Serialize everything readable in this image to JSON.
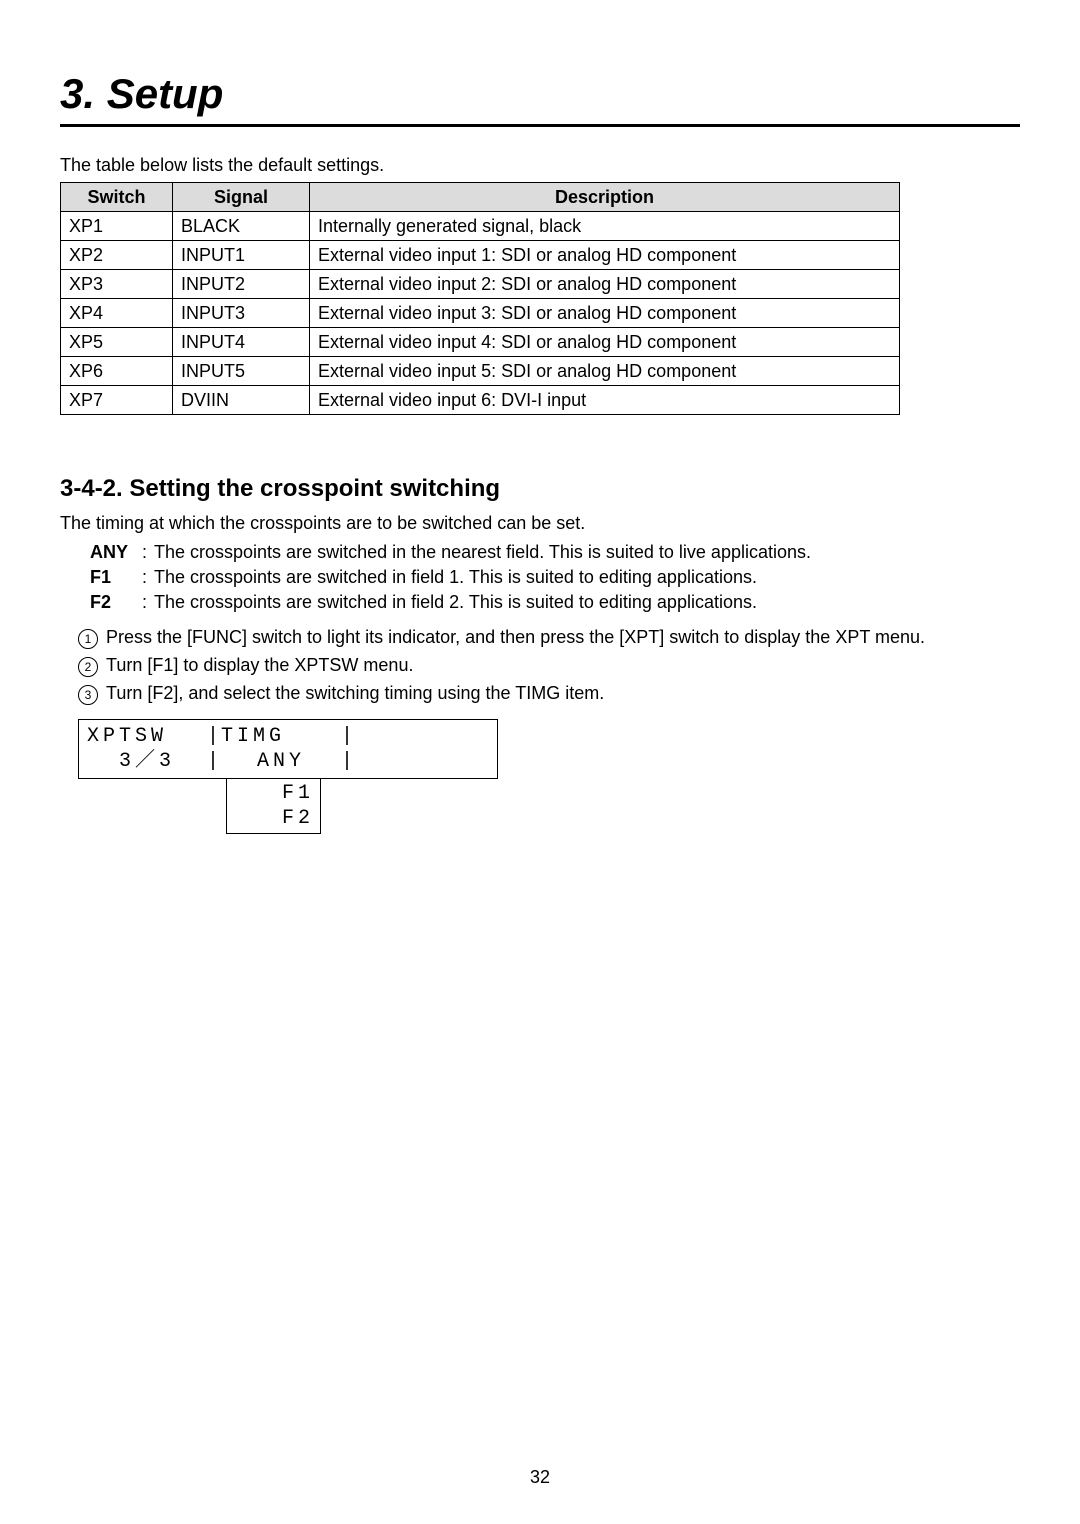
{
  "chapter": {
    "title": "3. Setup"
  },
  "intro": "The table below lists the default settings.",
  "defaults_table": {
    "columns": [
      "Switch",
      "Signal",
      "Description"
    ],
    "rows": [
      [
        "XP1",
        "BLACK",
        "Internally generated signal, black"
      ],
      [
        "XP2",
        "INPUT1",
        "External video input 1: SDI or analog HD component"
      ],
      [
        "XP3",
        "INPUT2",
        "External video input 2: SDI or analog HD component"
      ],
      [
        "XP4",
        "INPUT3",
        "External video input 3: SDI or analog HD component"
      ],
      [
        "XP5",
        "INPUT4",
        "External video input 4: SDI or analog HD component"
      ],
      [
        "XP6",
        "INPUT5",
        "External video input 5: SDI or analog HD component"
      ],
      [
        "XP7",
        "DVIIN",
        "External video input 6: DVI-I input"
      ]
    ]
  },
  "section": {
    "heading": "3-4-2. Setting the crosspoint switching",
    "body": "The timing at which the crosspoints are to be switched can be set.",
    "options": [
      {
        "label": "ANY",
        "text": "The crosspoints are switched in the nearest field. This is suited to live applications."
      },
      {
        "label": "F1",
        "text": "The crosspoints are switched in field 1. This is suited to editing applications."
      },
      {
        "label": "F2",
        "text": "The crosspoints are switched in field 2. This is suited to editing applications."
      }
    ],
    "steps": [
      "Press the [FUNC] switch to light its indicator, and then press the [XPT] switch to display the XPT menu.",
      "Turn [F1] to display the XPTSW menu.",
      "Turn [F2], and select the switching timing using the TIMG item."
    ]
  },
  "menu": {
    "line1_left": "XPTSW",
    "line1_right": "TIMG",
    "line2_left": "3／3",
    "line2_right": "ANY",
    "separator": "|",
    "opt1": "F1",
    "opt2": "F2"
  },
  "page_number": "32",
  "colors": {
    "text": "#000000",
    "background": "#ffffff",
    "table_header_bg": "#dcdcdc",
    "rule": "#000000"
  }
}
